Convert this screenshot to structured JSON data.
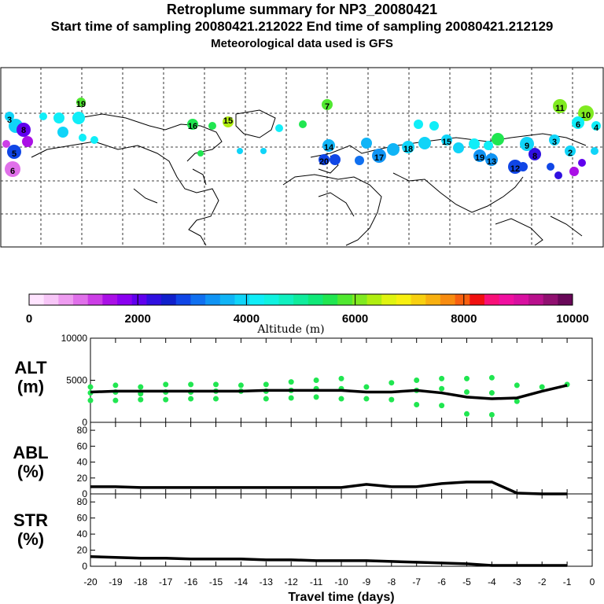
{
  "header": {
    "title": "Retroplume summary for NP3_20080421",
    "sampling": "Start time of sampling 20080421.212022     End time of sampling 20080421.212129",
    "met": "Meteorological data used is GFS"
  },
  "colorbar": {
    "label": "Altitude (m)",
    "ticks": [
      "0",
      "2000",
      "4000",
      "6000",
      "8000",
      "10000"
    ],
    "colors": [
      "#ffe4ff",
      "#f7c6f7",
      "#ee9cf0",
      "#e070ea",
      "#cc3ee6",
      "#aa10e6",
      "#8a00f0",
      "#6000ee",
      "#3010e0",
      "#1020cc",
      "#1046e6",
      "#1070f0",
      "#1094f4",
      "#10b4f6",
      "#10d4f8",
      "#10eef8",
      "#10f2e0",
      "#10f0c0",
      "#10ec9c",
      "#10e878",
      "#20e650",
      "#50e830",
      "#80ea20",
      "#b0ee10",
      "#e0f410",
      "#f8f010",
      "#f8d010",
      "#f8b010",
      "#f88c10",
      "#f86010",
      "#f01010",
      "#f81078",
      "#f010a0",
      "#d810a0",
      "#b8108c",
      "#901070",
      "#680858"
    ]
  },
  "map": {
    "labels": [
      {
        "text": "19",
        "c": "#50e830"
      },
      {
        "text": "3",
        "c": "#10eef8"
      },
      {
        "text": "8",
        "c": "#10d4f8"
      },
      {
        "text": "5",
        "c": "#cc3ee6"
      },
      {
        "text": "6",
        "c": "#1046e6"
      },
      {
        "text": "16",
        "c": "#20e650"
      },
      {
        "text": "15",
        "c": "#b0ee10"
      },
      {
        "text": "7",
        "c": "#50e830"
      },
      {
        "text": "14",
        "c": "#10b4f6"
      },
      {
        "text": "20",
        "c": "#1046e6"
      },
      {
        "text": "17",
        "c": "#1094f4"
      },
      {
        "text": "18",
        "c": "#10b4f6"
      },
      {
        "text": "15",
        "c": "#10d4f8"
      },
      {
        "text": "19",
        "c": "#10d4f8"
      },
      {
        "text": "13",
        "c": "#10eef8"
      },
      {
        "text": "12",
        "c": "#1094f4"
      },
      {
        "text": "11",
        "c": "#1094f4"
      },
      {
        "text": "10",
        "c": "#1046e6"
      },
      {
        "text": "6",
        "c": "#80ea20"
      },
      {
        "text": "4",
        "c": "#80ea20"
      },
      {
        "text": "8",
        "c": "#10eef8"
      },
      {
        "text": "9",
        "c": "#10eef8"
      },
      {
        "text": "3",
        "c": "#6000ee"
      },
      {
        "text": "2",
        "c": "#aa10e6"
      }
    ]
  },
  "chart_data": [
    {
      "type": "scatter",
      "title": "",
      "ylabel": "ALT (m)",
      "xlabel": "Travel time (days)",
      "xlim": [
        -20,
        0
      ],
      "ylim": [
        0,
        10000
      ],
      "y_ticks": [
        0,
        5000,
        10000
      ],
      "series": [
        {
          "name": "plume altitude samples",
          "color": "#20e650",
          "x": [
            -20,
            -20,
            -20,
            -19,
            -19,
            -19,
            -18,
            -18,
            -18,
            -17,
            -17,
            -17,
            -16,
            -16,
            -16,
            -15,
            -15,
            -15,
            -14,
            -14,
            -13,
            -13,
            -13,
            -12,
            -12,
            -12,
            -11,
            -11,
            -11,
            -10,
            -10,
            -10,
            -9,
            -9,
            -8,
            -8,
            -7,
            -7,
            -7,
            -6,
            -6,
            -6,
            -5,
            -5,
            -5,
            -4,
            -4,
            -4,
            -3,
            -3,
            -2,
            -1
          ],
          "y": [
            4200,
            3500,
            2600,
            4400,
            3600,
            2600,
            4200,
            3400,
            2700,
            4500,
            3600,
            2700,
            4500,
            3600,
            2800,
            4500,
            3700,
            2800,
            4400,
            3700,
            4500,
            3700,
            2800,
            4800,
            3800,
            2900,
            5000,
            4000,
            3000,
            5200,
            4000,
            2800,
            4200,
            2800,
            4700,
            2700,
            5000,
            3800,
            2100,
            5200,
            4000,
            2000,
            5200,
            3600,
            1000,
            5300,
            3500,
            900,
            4400,
            2500,
            4200,
            4500
          ]
        },
        {
          "name": "median altitude",
          "color": "#000000",
          "type": "line",
          "x": [
            -20,
            -19,
            -18,
            -17,
            -16,
            -15,
            -14,
            -13,
            -12,
            -11,
            -10,
            -9,
            -8,
            -7,
            -6,
            -5,
            -4,
            -3,
            -2,
            -1
          ],
          "y": [
            3600,
            3700,
            3700,
            3700,
            3700,
            3700,
            3700,
            3800,
            3800,
            3800,
            3800,
            3600,
            3600,
            3800,
            3500,
            3000,
            2800,
            2900,
            3700,
            4400
          ]
        }
      ]
    },
    {
      "type": "line",
      "ylabel": "ABL (%)",
      "xlim": [
        -20,
        0
      ],
      "ylim": [
        0,
        90
      ],
      "y_ticks": [
        0,
        20,
        40,
        60,
        80
      ],
      "x": [
        -20,
        -19,
        -18,
        -17,
        -16,
        -15,
        -14,
        -13,
        -12,
        -11,
        -10,
        -9,
        -8,
        -7,
        -6,
        -5,
        -4,
        -3,
        -2,
        -1
      ],
      "values": [
        9,
        9,
        8,
        8,
        8,
        8,
        8,
        8,
        8,
        8,
        8,
        12,
        9,
        9,
        13,
        15,
        15,
        1,
        0,
        0
      ]
    },
    {
      "type": "line",
      "ylabel": "STR (%)",
      "xlabel": "Travel time (days)",
      "xlim": [
        -20,
        0
      ],
      "ylim": [
        0,
        90
      ],
      "y_ticks": [
        0,
        20,
        40,
        60,
        80
      ],
      "x_ticks": [
        "-20",
        "-19",
        "-18",
        "-17",
        "-16",
        "-15",
        "-14",
        "-13",
        "-12",
        "-11",
        "-10",
        "-9",
        "-8",
        "-7",
        "-6",
        "-5",
        "-4",
        "-3",
        "-2",
        "-1",
        "0"
      ],
      "x": [
        -20,
        -19,
        -18,
        -17,
        -16,
        -15,
        -14,
        -13,
        -12,
        -11,
        -10,
        -9,
        -8,
        -7,
        -6,
        -5,
        -4,
        -3,
        -2,
        -1
      ],
      "values": [
        12,
        11,
        10,
        10,
        9,
        9,
        9,
        8,
        8,
        7,
        7,
        7,
        6,
        5,
        4,
        3,
        1,
        1,
        1,
        1
      ]
    }
  ],
  "panel_labels": {
    "alt": "ALT\n(m)",
    "abl": "ABL\n(%)",
    "str": "STR\n(%)"
  }
}
